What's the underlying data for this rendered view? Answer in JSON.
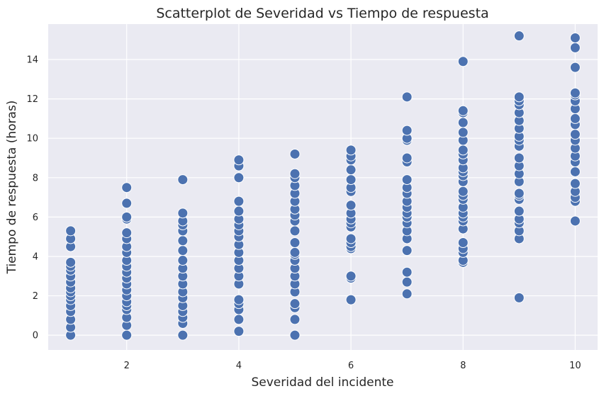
{
  "chart_data": {
    "type": "scatter",
    "title": "Scatterplot de Severidad vs Tiempo de respuesta",
    "xlabel": "Severidad del incidente",
    "ylabel": "Tiempo de respuesta (horas)",
    "xlim": [
      0.6,
      10.4
    ],
    "ylim": [
      -0.75,
      15.8
    ],
    "x_ticks": [
      2,
      4,
      6,
      8,
      10
    ],
    "y_ticks": [
      0,
      2,
      4,
      6,
      8,
      10,
      12,
      14
    ],
    "grid": true,
    "background_color": "#eaeaf2",
    "point_color": "#4c72b0",
    "series": [
      {
        "points": [
          [
            1,
            0.0
          ],
          [
            1,
            0.4
          ],
          [
            1,
            0.8
          ],
          [
            1,
            1.2
          ],
          [
            1,
            1.5
          ],
          [
            1,
            1.8
          ],
          [
            1,
            2.0
          ],
          [
            1,
            2.2
          ],
          [
            1,
            2.4
          ],
          [
            1,
            2.7
          ],
          [
            1,
            3.0
          ],
          [
            1,
            3.3
          ],
          [
            1,
            3.5
          ],
          [
            1,
            3.7
          ],
          [
            1,
            4.5
          ],
          [
            1,
            4.9
          ],
          [
            1,
            5.3
          ],
          [
            2,
            0.0
          ],
          [
            2,
            0.5
          ],
          [
            2,
            0.9
          ],
          [
            2,
            1.3
          ],
          [
            2,
            1.5
          ],
          [
            2,
            1.7
          ],
          [
            2,
            2.0
          ],
          [
            2,
            2.3
          ],
          [
            2,
            2.6
          ],
          [
            2,
            2.9
          ],
          [
            2,
            3.2
          ],
          [
            2,
            3.5
          ],
          [
            2,
            3.8
          ],
          [
            2,
            4.2
          ],
          [
            2,
            4.5
          ],
          [
            2,
            4.9
          ],
          [
            2,
            5.2
          ],
          [
            2,
            5.9
          ],
          [
            2,
            6.0
          ],
          [
            2,
            6.7
          ],
          [
            2,
            7.5
          ],
          [
            3,
            0.0
          ],
          [
            3,
            0.6
          ],
          [
            3,
            0.9
          ],
          [
            3,
            1.2
          ],
          [
            3,
            1.5
          ],
          [
            3,
            1.9
          ],
          [
            3,
            2.2
          ],
          [
            3,
            2.6
          ],
          [
            3,
            3.0
          ],
          [
            3,
            3.4
          ],
          [
            3,
            3.8
          ],
          [
            3,
            4.3
          ],
          [
            3,
            4.8
          ],
          [
            3,
            5.3
          ],
          [
            3,
            5.6
          ],
          [
            3,
            5.8
          ],
          [
            3,
            6.2
          ],
          [
            3,
            7.9
          ],
          [
            4,
            0.2
          ],
          [
            4,
            0.8
          ],
          [
            4,
            1.3
          ],
          [
            4,
            1.6
          ],
          [
            4,
            1.8
          ],
          [
            4,
            2.6
          ],
          [
            4,
            3.0
          ],
          [
            4,
            3.4
          ],
          [
            4,
            3.8
          ],
          [
            4,
            4.2
          ],
          [
            4,
            4.6
          ],
          [
            4,
            5.0
          ],
          [
            4,
            5.3
          ],
          [
            4,
            5.6
          ],
          [
            4,
            5.9
          ],
          [
            4,
            6.3
          ],
          [
            4,
            6.8
          ],
          [
            4,
            8.0
          ],
          [
            4,
            8.6
          ],
          [
            4,
            8.9
          ],
          [
            5,
            0.0
          ],
          [
            5,
            0.8
          ],
          [
            5,
            1.4
          ],
          [
            5,
            1.6
          ],
          [
            5,
            2.2
          ],
          [
            5,
            2.6
          ],
          [
            5,
            3.0
          ],
          [
            5,
            3.4
          ],
          [
            5,
            3.8
          ],
          [
            5,
            4.1
          ],
          [
            5,
            4.2
          ],
          [
            5,
            4.7
          ],
          [
            5,
            5.3
          ],
          [
            5,
            5.8
          ],
          [
            5,
            6.1
          ],
          [
            5,
            6.4
          ],
          [
            5,
            6.8
          ],
          [
            5,
            7.2
          ],
          [
            5,
            7.6
          ],
          [
            5,
            8.0
          ],
          [
            5,
            8.2
          ],
          [
            5,
            9.2
          ],
          [
            6,
            1.8
          ],
          [
            6,
            2.9
          ],
          [
            6,
            3.0
          ],
          [
            6,
            4.4
          ],
          [
            6,
            4.5
          ],
          [
            6,
            4.7
          ],
          [
            6,
            4.9
          ],
          [
            6,
            5.5
          ],
          [
            6,
            5.7
          ],
          [
            6,
            5.9
          ],
          [
            6,
            6.2
          ],
          [
            6,
            6.6
          ],
          [
            6,
            7.3
          ],
          [
            6,
            7.5
          ],
          [
            6,
            7.9
          ],
          [
            6,
            8.4
          ],
          [
            6,
            8.9
          ],
          [
            6,
            9.1
          ],
          [
            6,
            9.4
          ],
          [
            7,
            2.1
          ],
          [
            7,
            2.7
          ],
          [
            7,
            3.2
          ],
          [
            7,
            4.3
          ],
          [
            7,
            4.9
          ],
          [
            7,
            5.3
          ],
          [
            7,
            5.7
          ],
          [
            7,
            6.0
          ],
          [
            7,
            6.2
          ],
          [
            7,
            6.5
          ],
          [
            7,
            6.8
          ],
          [
            7,
            7.2
          ],
          [
            7,
            7.5
          ],
          [
            7,
            7.9
          ],
          [
            7,
            8.8
          ],
          [
            7,
            9.0
          ],
          [
            7,
            9.9
          ],
          [
            7,
            10.0
          ],
          [
            7,
            10.4
          ],
          [
            7,
            12.1
          ],
          [
            8,
            3.7
          ],
          [
            8,
            3.8
          ],
          [
            8,
            4.2
          ],
          [
            8,
            4.4
          ],
          [
            8,
            4.7
          ],
          [
            8,
            5.4
          ],
          [
            8,
            5.8
          ],
          [
            8,
            6.0
          ],
          [
            8,
            6.2
          ],
          [
            8,
            6.5
          ],
          [
            8,
            6.9
          ],
          [
            8,
            7.1
          ],
          [
            8,
            7.3
          ],
          [
            8,
            7.8
          ],
          [
            8,
            8.1
          ],
          [
            8,
            8.3
          ],
          [
            8,
            8.5
          ],
          [
            8,
            8.9
          ],
          [
            8,
            9.2
          ],
          [
            8,
            9.4
          ],
          [
            8,
            9.9
          ],
          [
            8,
            10.3
          ],
          [
            8,
            10.8
          ],
          [
            8,
            11.3
          ],
          [
            8,
            11.4
          ],
          [
            8,
            13.9
          ],
          [
            9,
            1.9
          ],
          [
            9,
            4.9
          ],
          [
            9,
            5.3
          ],
          [
            9,
            5.7
          ],
          [
            9,
            5.9
          ],
          [
            9,
            6.3
          ],
          [
            9,
            6.9
          ],
          [
            9,
            7.1
          ],
          [
            9,
            7.2
          ],
          [
            9,
            7.8
          ],
          [
            9,
            8.2
          ],
          [
            9,
            8.6
          ],
          [
            9,
            9.0
          ],
          [
            9,
            9.6
          ],
          [
            9,
            9.9
          ],
          [
            9,
            10.1
          ],
          [
            9,
            10.5
          ],
          [
            9,
            10.9
          ],
          [
            9,
            11.3
          ],
          [
            9,
            11.7
          ],
          [
            9,
            11.9
          ],
          [
            9,
            12.1
          ],
          [
            9,
            15.2
          ],
          [
            10,
            5.8
          ],
          [
            10,
            6.8
          ],
          [
            10,
            7.0
          ],
          [
            10,
            7.3
          ],
          [
            10,
            7.7
          ],
          [
            10,
            8.3
          ],
          [
            10,
            8.8
          ],
          [
            10,
            9.1
          ],
          [
            10,
            9.5
          ],
          [
            10,
            9.9
          ],
          [
            10,
            10.2
          ],
          [
            10,
            10.7
          ],
          [
            10,
            11.0
          ],
          [
            10,
            11.5
          ],
          [
            10,
            11.9
          ],
          [
            10,
            12.2
          ],
          [
            10,
            12.3
          ],
          [
            10,
            13.6
          ],
          [
            10,
            14.6
          ],
          [
            10,
            15.1
          ]
        ]
      }
    ]
  }
}
